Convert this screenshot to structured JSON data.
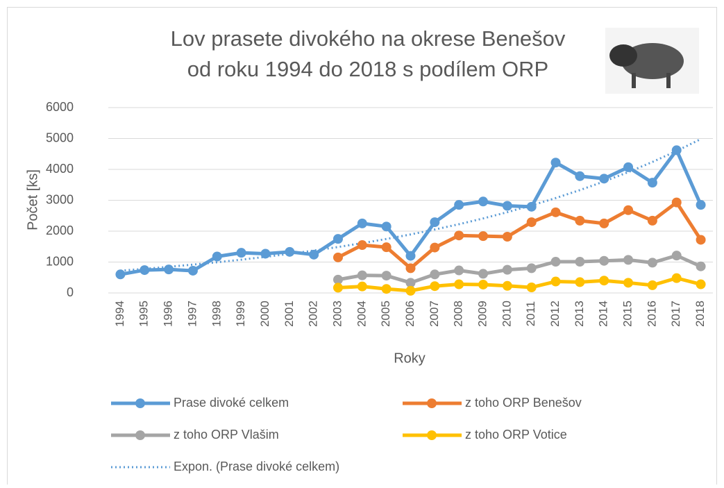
{
  "chart_data": {
    "type": "line",
    "title": [
      "Lov prasete divokého na okrese Benešov",
      "od roku 1994 do 2018 s podílem ORP"
    ],
    "x_label": "Roky",
    "y_label": "Počet [ks]",
    "categories": [
      "1994",
      "1995",
      "1996",
      "1997",
      "1998",
      "1999",
      "2000",
      "2001",
      "2002",
      "2003",
      "2004",
      "2005",
      "2006",
      "2007",
      "2008",
      "2009",
      "2010",
      "2011",
      "2012",
      "2013",
      "2014",
      "2015",
      "2016",
      "2017",
      "2018"
    ],
    "series": [
      {
        "name": "Prase divoké celkem",
        "color": "#5b9bd5",
        "marker": true,
        "values": [
          600,
          740,
          760,
          720,
          1180,
          1300,
          1270,
          1330,
          1240,
          1750,
          2250,
          2150,
          1200,
          2290,
          2850,
          2960,
          2820,
          2790,
          4220,
          3780,
          3700,
          4070,
          3570,
          4620,
          2850
        ]
      },
      {
        "name": "z toho ORP Benešov",
        "color": "#ed7d31",
        "marker": true,
        "values": [
          null,
          null,
          null,
          null,
          null,
          null,
          null,
          null,
          null,
          1150,
          1550,
          1480,
          800,
          1470,
          1860,
          1840,
          1820,
          2290,
          2610,
          2340,
          2250,
          2680,
          2340,
          2930,
          1720
        ]
      },
      {
        "name": "z toho ORP Vlašim",
        "color": "#a5a5a5",
        "marker": true,
        "values": [
          null,
          null,
          null,
          null,
          null,
          null,
          null,
          null,
          null,
          430,
          570,
          560,
          330,
          600,
          730,
          620,
          750,
          800,
          1010,
          1010,
          1040,
          1070,
          980,
          1210,
          860
        ]
      },
      {
        "name": "z toho ORP Votice",
        "color": "#ffc000",
        "marker": true,
        "values": [
          null,
          null,
          null,
          null,
          null,
          null,
          null,
          null,
          null,
          170,
          210,
          130,
          70,
          220,
          280,
          270,
          230,
          180,
          370,
          350,
          400,
          330,
          250,
          480,
          280
        ]
      },
      {
        "name": "Expon. (Prase divoké celkem)",
        "color": "#5b9bd5",
        "marker": false,
        "dash": true,
        "values": [
          720,
          780,
          846,
          917,
          994,
          1077,
          1168,
          1266,
          1372,
          1487,
          1612,
          1747,
          1894,
          2053,
          2225,
          2412,
          2614,
          2834,
          3071,
          3329,
          3609,
          3911,
          4240,
          4596,
          4981
        ]
      }
    ],
    "ylim": [
      0,
      6000
    ],
    "yticks": [
      0,
      1000,
      2000,
      3000,
      4000,
      5000,
      6000
    ],
    "grid": true,
    "legend": "bottom"
  }
}
